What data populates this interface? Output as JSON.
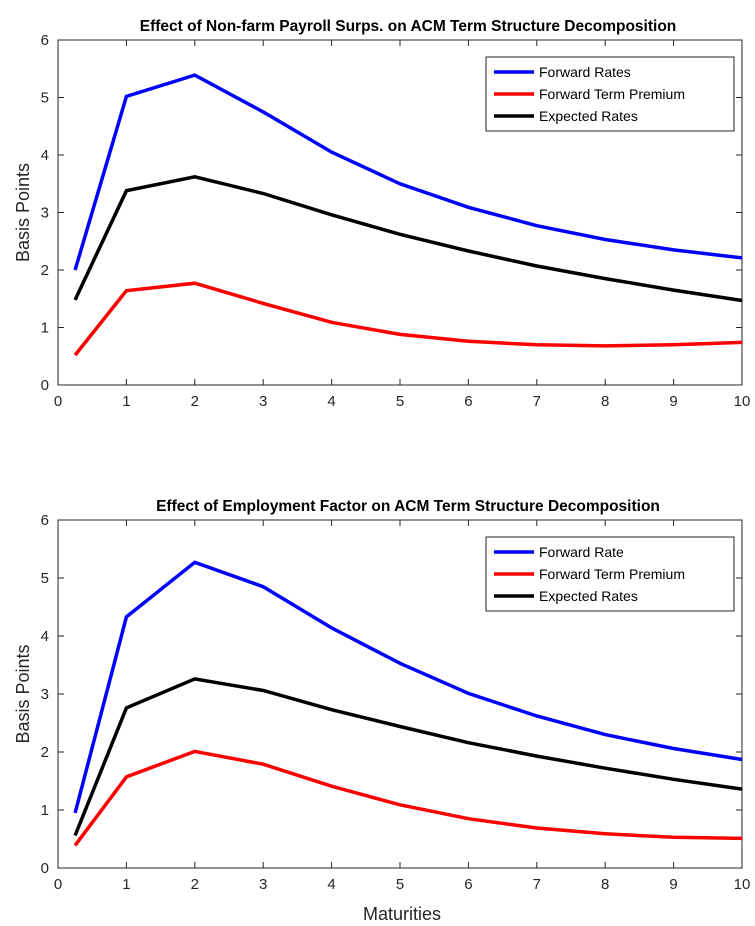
{
  "chart_data": [
    {
      "type": "line",
      "title": "Effect of Non-farm Payroll Surps. on ACM Term Structure Decomposition",
      "xlabel": "",
      "ylabel": "Basis Points",
      "xlim": [
        0,
        10
      ],
      "ylim": [
        0,
        6
      ],
      "xticks": [
        "0",
        "1",
        "2",
        "3",
        "4",
        "5",
        "6",
        "7",
        "8",
        "9",
        "10"
      ],
      "yticks": [
        "0",
        "1",
        "2",
        "3",
        "4",
        "5",
        "6"
      ],
      "grid": false,
      "legend_position": "top-right",
      "x": [
        0.25,
        1,
        2,
        3,
        4,
        5,
        6,
        7,
        8,
        9,
        10
      ],
      "series": [
        {
          "name": "Forward Rates",
          "color": "#0000ff",
          "values": [
            2.0,
            5.02,
            5.39,
            4.75,
            4.05,
            3.5,
            3.09,
            2.77,
            2.53,
            2.35,
            2.21
          ]
        },
        {
          "name": "Forward Term Premium",
          "color": "#ff0000",
          "values": [
            0.52,
            1.64,
            1.77,
            1.42,
            1.09,
            0.88,
            0.76,
            0.7,
            0.68,
            0.7,
            0.74
          ]
        },
        {
          "name": "Expected Rates",
          "color": "#000000",
          "values": [
            1.48,
            3.38,
            3.62,
            3.33,
            2.96,
            2.62,
            2.33,
            2.07,
            1.85,
            1.65,
            1.47
          ]
        }
      ]
    },
    {
      "type": "line",
      "title": "Effect of Employment Factor on ACM Term Structure Decomposition",
      "xlabel": "Maturities",
      "ylabel": "Basis Points",
      "xlim": [
        0,
        10
      ],
      "ylim": [
        0,
        6
      ],
      "xticks": [
        "0",
        "1",
        "2",
        "3",
        "4",
        "5",
        "6",
        "7",
        "8",
        "9",
        "10"
      ],
      "yticks": [
        "0",
        "1",
        "2",
        "3",
        "4",
        "5",
        "6"
      ],
      "grid": false,
      "legend_position": "top-right",
      "x": [
        0.25,
        1,
        2,
        3,
        4,
        5,
        6,
        7,
        8,
        9,
        10
      ],
      "series": [
        {
          "name": "Forward Rate",
          "color": "#0000ff",
          "values": [
            0.95,
            4.33,
            5.27,
            4.85,
            4.14,
            3.53,
            3.01,
            2.62,
            2.3,
            2.06,
            1.87
          ]
        },
        {
          "name": "Forward Term Premium",
          "color": "#ff0000",
          "values": [
            0.39,
            1.57,
            2.01,
            1.79,
            1.41,
            1.09,
            0.85,
            0.69,
            0.59,
            0.53,
            0.51
          ]
        },
        {
          "name": "Expected Rates",
          "color": "#000000",
          "values": [
            0.56,
            2.76,
            3.26,
            3.06,
            2.73,
            2.44,
            2.16,
            1.93,
            1.72,
            1.53,
            1.36
          ]
        }
      ]
    }
  ]
}
